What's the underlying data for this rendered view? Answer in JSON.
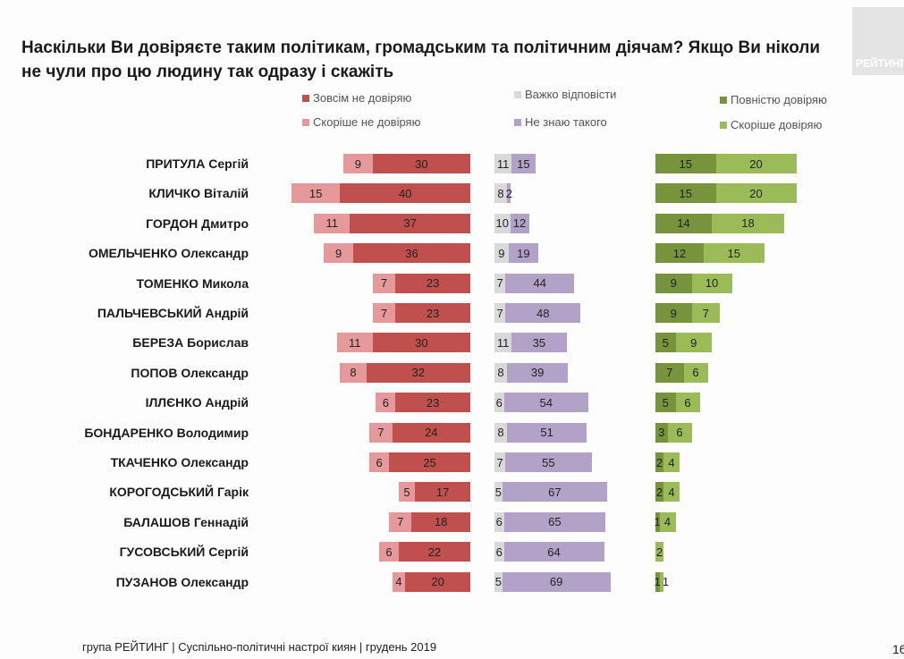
{
  "title": "Наскільки Ви довіряєте таким політикам, громадським та політичним діячам? Якщо Ви ніколи не чули про цю людину так одразу і скажіть",
  "logo_text": "РЕЙТИНГ",
  "footer": "група РЕЙТИНГ | Суспільно-політичні настрої киян | грудень  2019",
  "page_number": "16",
  "chart_data": {
    "type": "bar",
    "orientation": "horizontal-stacked",
    "categories": [
      "ПРИТУЛА Сергій",
      "КЛИЧКО Віталій",
      "ГОРДОН Дмитро",
      "ОМЕЛЬЧЕНКО Олександр",
      "ТОМЕНКО Микола",
      "ПАЛЬЧЕВСЬКИЙ Андрій",
      "БЕРЕЗА Борислав",
      "ПОПОВ Олександр",
      "ІЛЛЄНКО Андрій",
      "БОНДАРЕНКО Володимир",
      "ТКАЧЕНКО Олександр",
      "КОРОГОДСЬКИЙ Гарік",
      "БАЛАШОВ Геннадій",
      "ГУСОВСЬКИЙ Сергій",
      "ПУЗАНОВ Олександр"
    ],
    "series": [
      {
        "name": "Зовсім не довіряю",
        "color": "#c0504d",
        "values": [
          30,
          40,
          37,
          36,
          23,
          23,
          30,
          32,
          23,
          24,
          25,
          17,
          18,
          22,
          20
        ]
      },
      {
        "name": "Скоріше не довіряю",
        "color": "#e6999a",
        "values": [
          9,
          15,
          11,
          9,
          7,
          7,
          11,
          8,
          6,
          7,
          6,
          5,
          7,
          6,
          4
        ]
      },
      {
        "name": "Важко відповісти",
        "color": "#d9d9d9",
        "values": [
          11,
          8,
          10,
          9,
          7,
          7,
          11,
          8,
          6,
          8,
          7,
          5,
          6,
          6,
          5
        ]
      },
      {
        "name": "Не знаю такого",
        "color": "#b3a2c7",
        "values": [
          15,
          2,
          12,
          19,
          44,
          48,
          35,
          39,
          54,
          51,
          55,
          67,
          65,
          64,
          69
        ]
      },
      {
        "name": "Повністю довіряю",
        "color": "#77933c",
        "values": [
          15,
          15,
          14,
          12,
          9,
          9,
          5,
          7,
          5,
          3,
          2,
          2,
          1,
          0,
          1
        ]
      },
      {
        "name": "Скоріше довіряю",
        "color": "#9bbb59",
        "values": [
          20,
          20,
          18,
          15,
          10,
          7,
          9,
          6,
          6,
          6,
          4,
          4,
          4,
          2,
          1
        ]
      }
    ],
    "legend_position": "top"
  }
}
